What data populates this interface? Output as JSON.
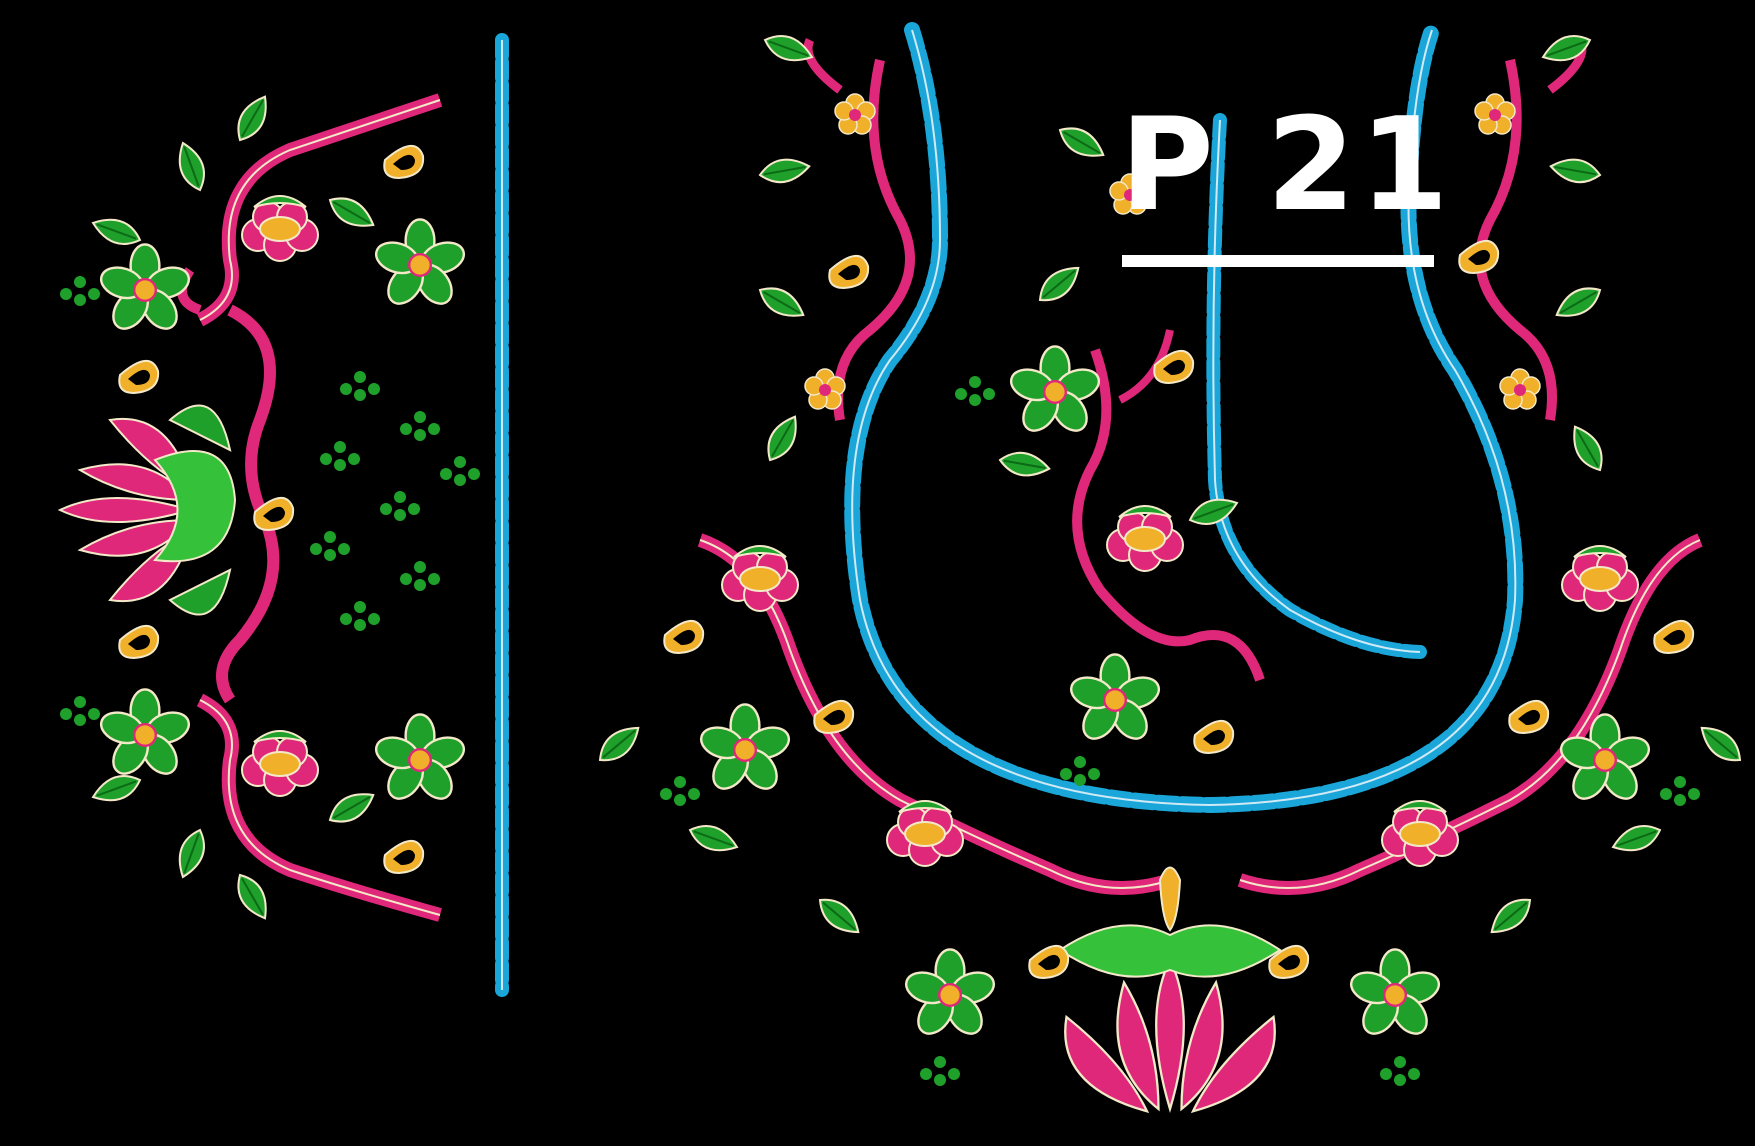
{
  "design": {
    "label": "P 21"
  },
  "colors": {
    "background": "#000000",
    "pink": "#e0287a",
    "green": "#1fa02a",
    "light_green": "#35c23a",
    "gold": "#f0b02a",
    "cyan": "#1aa6d8",
    "outline": "#f3e9c8"
  },
  "motifs": [
    "sleeve-lotus-icon",
    "sleeve-cyan-border",
    "neckline-cyan-border",
    "bottom-lotus-icon",
    "flower-icon",
    "leaf-icon",
    "paisley-icon"
  ]
}
